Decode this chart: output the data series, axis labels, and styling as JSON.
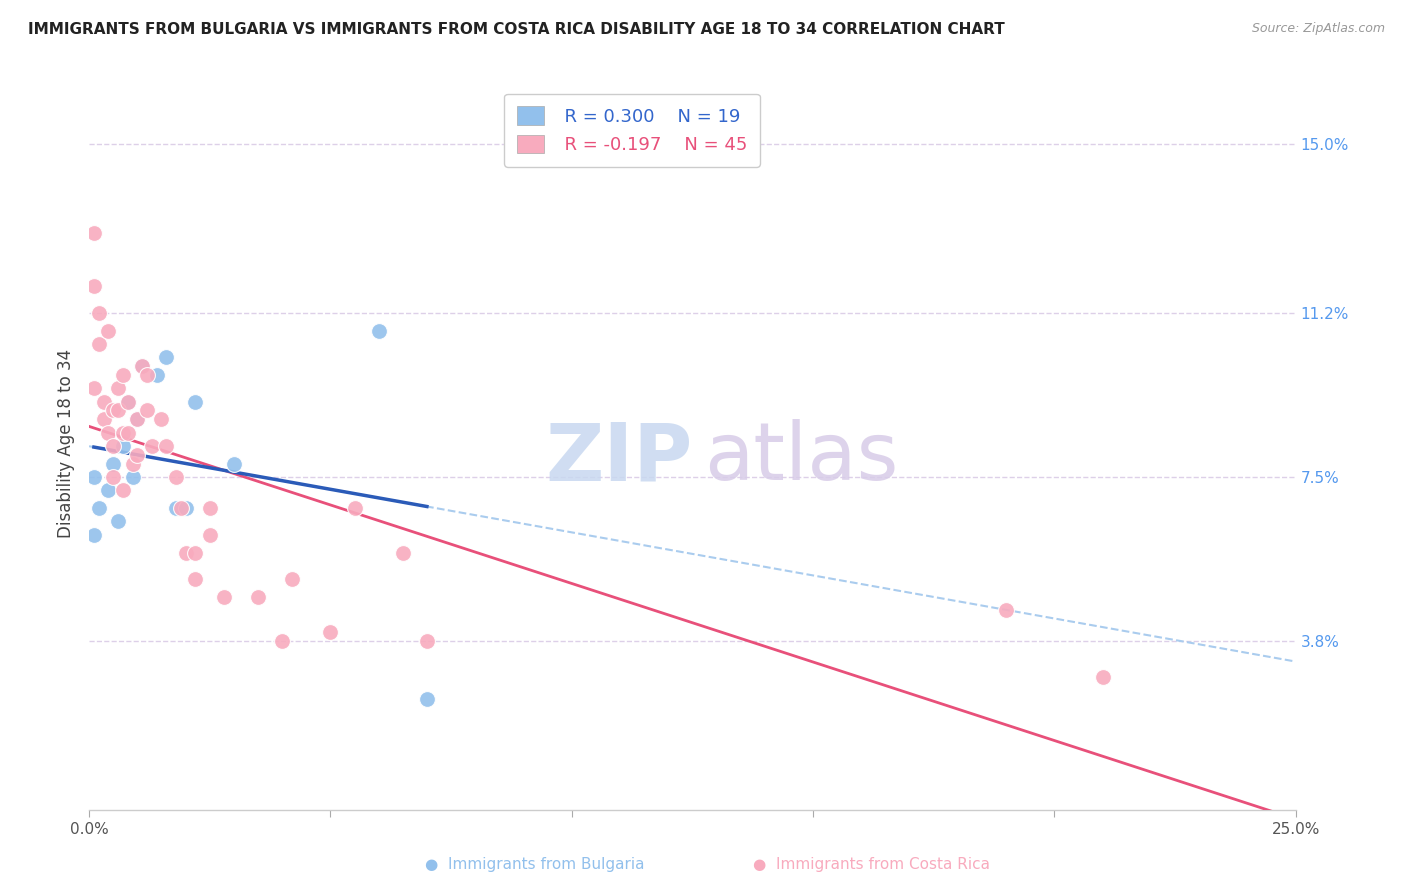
{
  "title": "IMMIGRANTS FROM BULGARIA VS IMMIGRANTS FROM COSTA RICA DISABILITY AGE 18 TO 34 CORRELATION CHART",
  "source": "Source: ZipAtlas.com",
  "ylabel": "Disability Age 18 to 34",
  "ytick_labels": [
    "15.0%",
    "11.2%",
    "7.5%",
    "3.8%"
  ],
  "ytick_values": [
    0.15,
    0.112,
    0.075,
    0.038
  ],
  "xlim": [
    0.0,
    0.25
  ],
  "ylim": [
    0.0,
    0.165
  ],
  "legend_r_bulgaria": "R = 0.300",
  "legend_n_bulgaria": "N = 19",
  "legend_r_costarica": "R = -0.197",
  "legend_n_costarica": "N = 45",
  "color_bulgaria": "#92C0EC",
  "color_costarica": "#F8ABBE",
  "color_bulgaria_line": "#2B5BB8",
  "color_costarica_line": "#E8507A",
  "color_dashed_line": "#AACCEE",
  "bulgaria_x": [
    0.001,
    0.001,
    0.002,
    0.004,
    0.005,
    0.006,
    0.007,
    0.008,
    0.009,
    0.01,
    0.011,
    0.014,
    0.016,
    0.018,
    0.02,
    0.022,
    0.03,
    0.06,
    0.07
  ],
  "bulgaria_y": [
    0.075,
    0.062,
    0.068,
    0.072,
    0.078,
    0.065,
    0.082,
    0.092,
    0.075,
    0.088,
    0.1,
    0.098,
    0.102,
    0.068,
    0.068,
    0.092,
    0.078,
    0.108,
    0.025
  ],
  "costarica_x": [
    0.001,
    0.001,
    0.001,
    0.002,
    0.002,
    0.003,
    0.003,
    0.004,
    0.004,
    0.005,
    0.005,
    0.005,
    0.006,
    0.006,
    0.007,
    0.007,
    0.007,
    0.008,
    0.008,
    0.009,
    0.01,
    0.01,
    0.011,
    0.012,
    0.012,
    0.013,
    0.015,
    0.016,
    0.018,
    0.019,
    0.02,
    0.022,
    0.022,
    0.025,
    0.025,
    0.028,
    0.035,
    0.04,
    0.042,
    0.05,
    0.055,
    0.065,
    0.07,
    0.19,
    0.21
  ],
  "costarica_y": [
    0.13,
    0.118,
    0.095,
    0.112,
    0.105,
    0.088,
    0.092,
    0.085,
    0.108,
    0.09,
    0.082,
    0.075,
    0.095,
    0.09,
    0.098,
    0.085,
    0.072,
    0.085,
    0.092,
    0.078,
    0.08,
    0.088,
    0.1,
    0.098,
    0.09,
    0.082,
    0.088,
    0.082,
    0.075,
    0.068,
    0.058,
    0.058,
    0.052,
    0.062,
    0.068,
    0.048,
    0.048,
    0.038,
    0.052,
    0.04,
    0.068,
    0.058,
    0.038,
    0.045,
    0.03
  ],
  "bg_color": "#FFFFFF",
  "grid_color": "#DDD0E8"
}
